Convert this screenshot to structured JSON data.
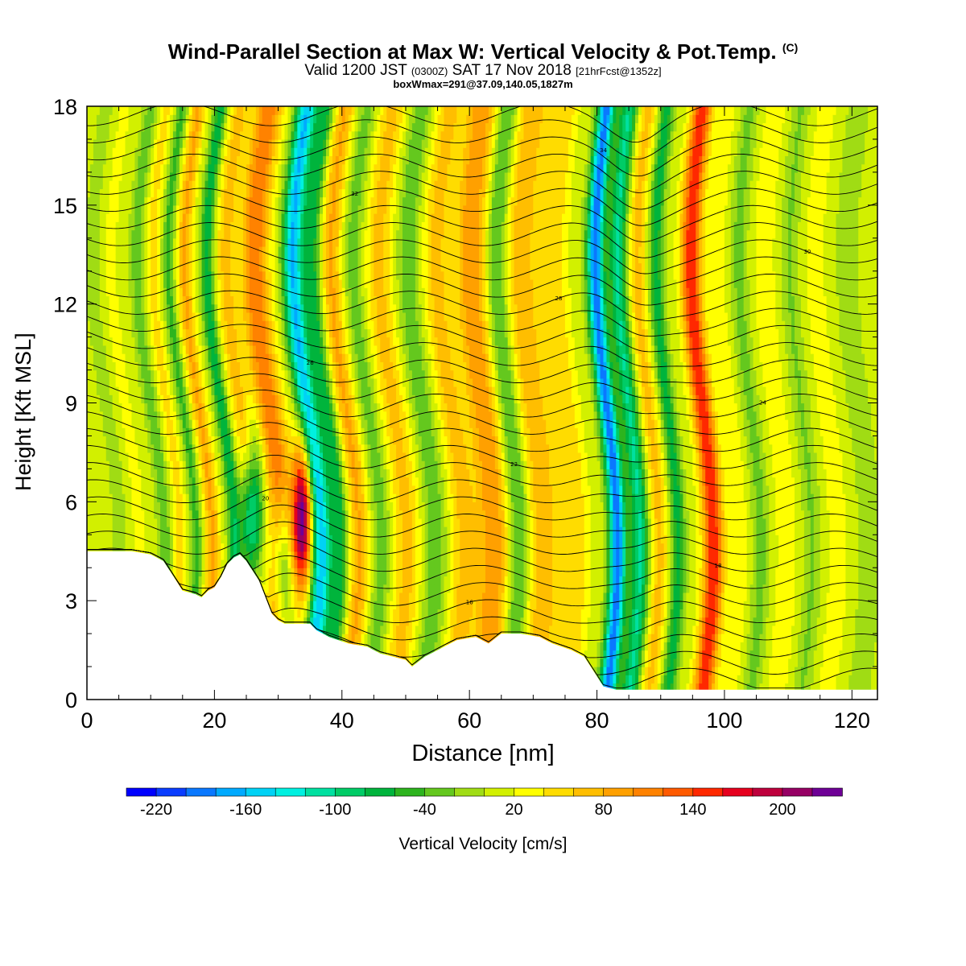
{
  "header": {
    "title": "Wind-Parallel Section at Max W: Vertical Velocity & Pot.Temp.",
    "copyright": "(C)",
    "valid_prefix": "Valid 1200 JST",
    "valid_utc": "(0300Z)",
    "valid_date": "SAT 17 Nov 2018",
    "forecast": "[21hrFcst@1352z]",
    "box_wmax": "boxWmax=291@37.09,140.05,1827m"
  },
  "chart_data": {
    "type": "heatmap",
    "title": "Wind-Parallel Section at Max W: Vertical Velocity & Pot.Temp.",
    "xlabel": "Distance [nm]",
    "ylabel": "Height [Kft MSL]",
    "colorbar_label": "Vertical Velocity [cm/s]",
    "xlim": [
      0,
      124
    ],
    "ylim": [
      0,
      18
    ],
    "x_ticks": [
      0,
      20,
      40,
      60,
      80,
      100,
      120
    ],
    "y_ticks": [
      0,
      3,
      6,
      9,
      12,
      15,
      18
    ],
    "colorbar": {
      "bounds": [
        -240,
        240
      ],
      "step": 20,
      "tick_values": [
        -220,
        -160,
        -100,
        -40,
        20,
        80,
        140,
        200
      ],
      "colors": [
        "#0000ff",
        "#0a3cff",
        "#0a78ff",
        "#00aaff",
        "#00d2f5",
        "#00f0e0",
        "#00e0a0",
        "#00cc66",
        "#00b43c",
        "#2db41e",
        "#64c81e",
        "#a0dc14",
        "#d2f000",
        "#ffff00",
        "#ffdc00",
        "#ffbe00",
        "#ffa000",
        "#ff8200",
        "#ff5a00",
        "#ff2800",
        "#e6001e",
        "#be003c",
        "#960064",
        "#6e0096"
      ]
    },
    "terrain_kft": [
      [
        0,
        4.5
      ],
      [
        7,
        4.5
      ],
      [
        10,
        4.4
      ],
      [
        12,
        4.2
      ],
      [
        13,
        3.9
      ],
      [
        14,
        3.6
      ],
      [
        15,
        3.3
      ],
      [
        17,
        3.2
      ],
      [
        18,
        3.1
      ],
      [
        19,
        3.3
      ],
      [
        20,
        3.4
      ],
      [
        21,
        3.7
      ],
      [
        22,
        4.1
      ],
      [
        23,
        4.3
      ],
      [
        24,
        4.4
      ],
      [
        25,
        4.2
      ],
      [
        26,
        3.9
      ],
      [
        27,
        3.6
      ],
      [
        28,
        3.1
      ],
      [
        29,
        2.6
      ],
      [
        30,
        2.4
      ],
      [
        31,
        2.3
      ],
      [
        33,
        2.3
      ],
      [
        35,
        2.3
      ],
      [
        36,
        2.1
      ],
      [
        38,
        1.9
      ],
      [
        41,
        1.7
      ],
      [
        44,
        1.6
      ],
      [
        46,
        1.4
      ],
      [
        48,
        1.3
      ],
      [
        50,
        1.2
      ],
      [
        51,
        1.0
      ],
      [
        53,
        1.3
      ],
      [
        55,
        1.5
      ],
      [
        58,
        1.8
      ],
      [
        61,
        1.9
      ],
      [
        63,
        1.7
      ],
      [
        65,
        2.0
      ],
      [
        68,
        2.0
      ],
      [
        71,
        1.9
      ],
      [
        73,
        1.7
      ],
      [
        76,
        1.5
      ],
      [
        78,
        1.3
      ],
      [
        80,
        0.7
      ],
      [
        81,
        0.4
      ],
      [
        83,
        0.3
      ],
      [
        100,
        0.3
      ],
      [
        124,
        0.3
      ]
    ],
    "velocity_bands_cms": [
      {
        "x": 3,
        "w": 0.9,
        "amp": -28
      },
      {
        "x": 6,
        "w": 1.1,
        "amp": 20
      },
      {
        "x": 10,
        "w": 1.0,
        "amp": -42
      },
      {
        "x": 12.5,
        "w": 1.0,
        "amp": 40
      },
      {
        "x": 15,
        "w": 0.9,
        "amp": -55
      },
      {
        "x": 17.5,
        "w": 1.2,
        "amp": 75
      },
      {
        "x": 21,
        "w": 1.0,
        "amp": -85
      },
      {
        "x": 24,
        "w": 1.5,
        "amp": 60
      },
      {
        "x": 28.5,
        "w": 2.2,
        "amp": 110
      },
      {
        "x": 34.5,
        "w": 1.6,
        "amp": -170
      },
      {
        "x": 37.5,
        "w": 1.3,
        "amp": -80
      },
      {
        "x": 40.5,
        "w": 1.6,
        "amp": 75
      },
      {
        "x": 44,
        "w": 1.4,
        "amp": -40
      },
      {
        "x": 48,
        "w": 2.0,
        "amp": 60
      },
      {
        "x": 52.5,
        "w": 1.6,
        "amp": -45
      },
      {
        "x": 57,
        "w": 2.0,
        "amp": 60
      },
      {
        "x": 62,
        "w": 2.5,
        "amp": 90
      },
      {
        "x": 66,
        "w": 1.6,
        "amp": -60
      },
      {
        "x": 70,
        "w": 2.5,
        "amp": 70
      },
      {
        "x": 75,
        "w": 2.0,
        "amp": 50
      },
      {
        "x": 81.5,
        "w": 1.3,
        "amp": -200
      },
      {
        "x": 85,
        "w": 1.4,
        "amp": -110
      },
      {
        "x": 88,
        "w": 1.4,
        "amp": 60
      },
      {
        "x": 91,
        "w": 1.1,
        "amp": -80
      },
      {
        "x": 96.5,
        "w": 1.6,
        "amp": 150
      },
      {
        "x": 100.5,
        "w": 1.4,
        "amp": 30
      },
      {
        "x": 104,
        "w": 1.3,
        "amp": -35
      },
      {
        "x": 108,
        "w": 1.6,
        "amp": 30
      },
      {
        "x": 112,
        "w": 1.3,
        "amp": -30
      },
      {
        "x": 116,
        "w": 1.6,
        "amp": 25
      },
      {
        "x": 121,
        "w": 1.6,
        "amp": -25
      }
    ],
    "low_level_cells_cms": [
      {
        "x": 33.8,
        "y": 5.5,
        "amp": 220
      },
      {
        "x": 26,
        "y": 5.5,
        "amp": -170
      },
      {
        "x": 31,
        "y": 3.8,
        "amp": -130
      }
    ],
    "isentrope_labels": [
      "36",
      "34",
      "32",
      "30",
      "28",
      "26",
      "24",
      "22",
      "20",
      "18",
      "16",
      "14"
    ]
  }
}
